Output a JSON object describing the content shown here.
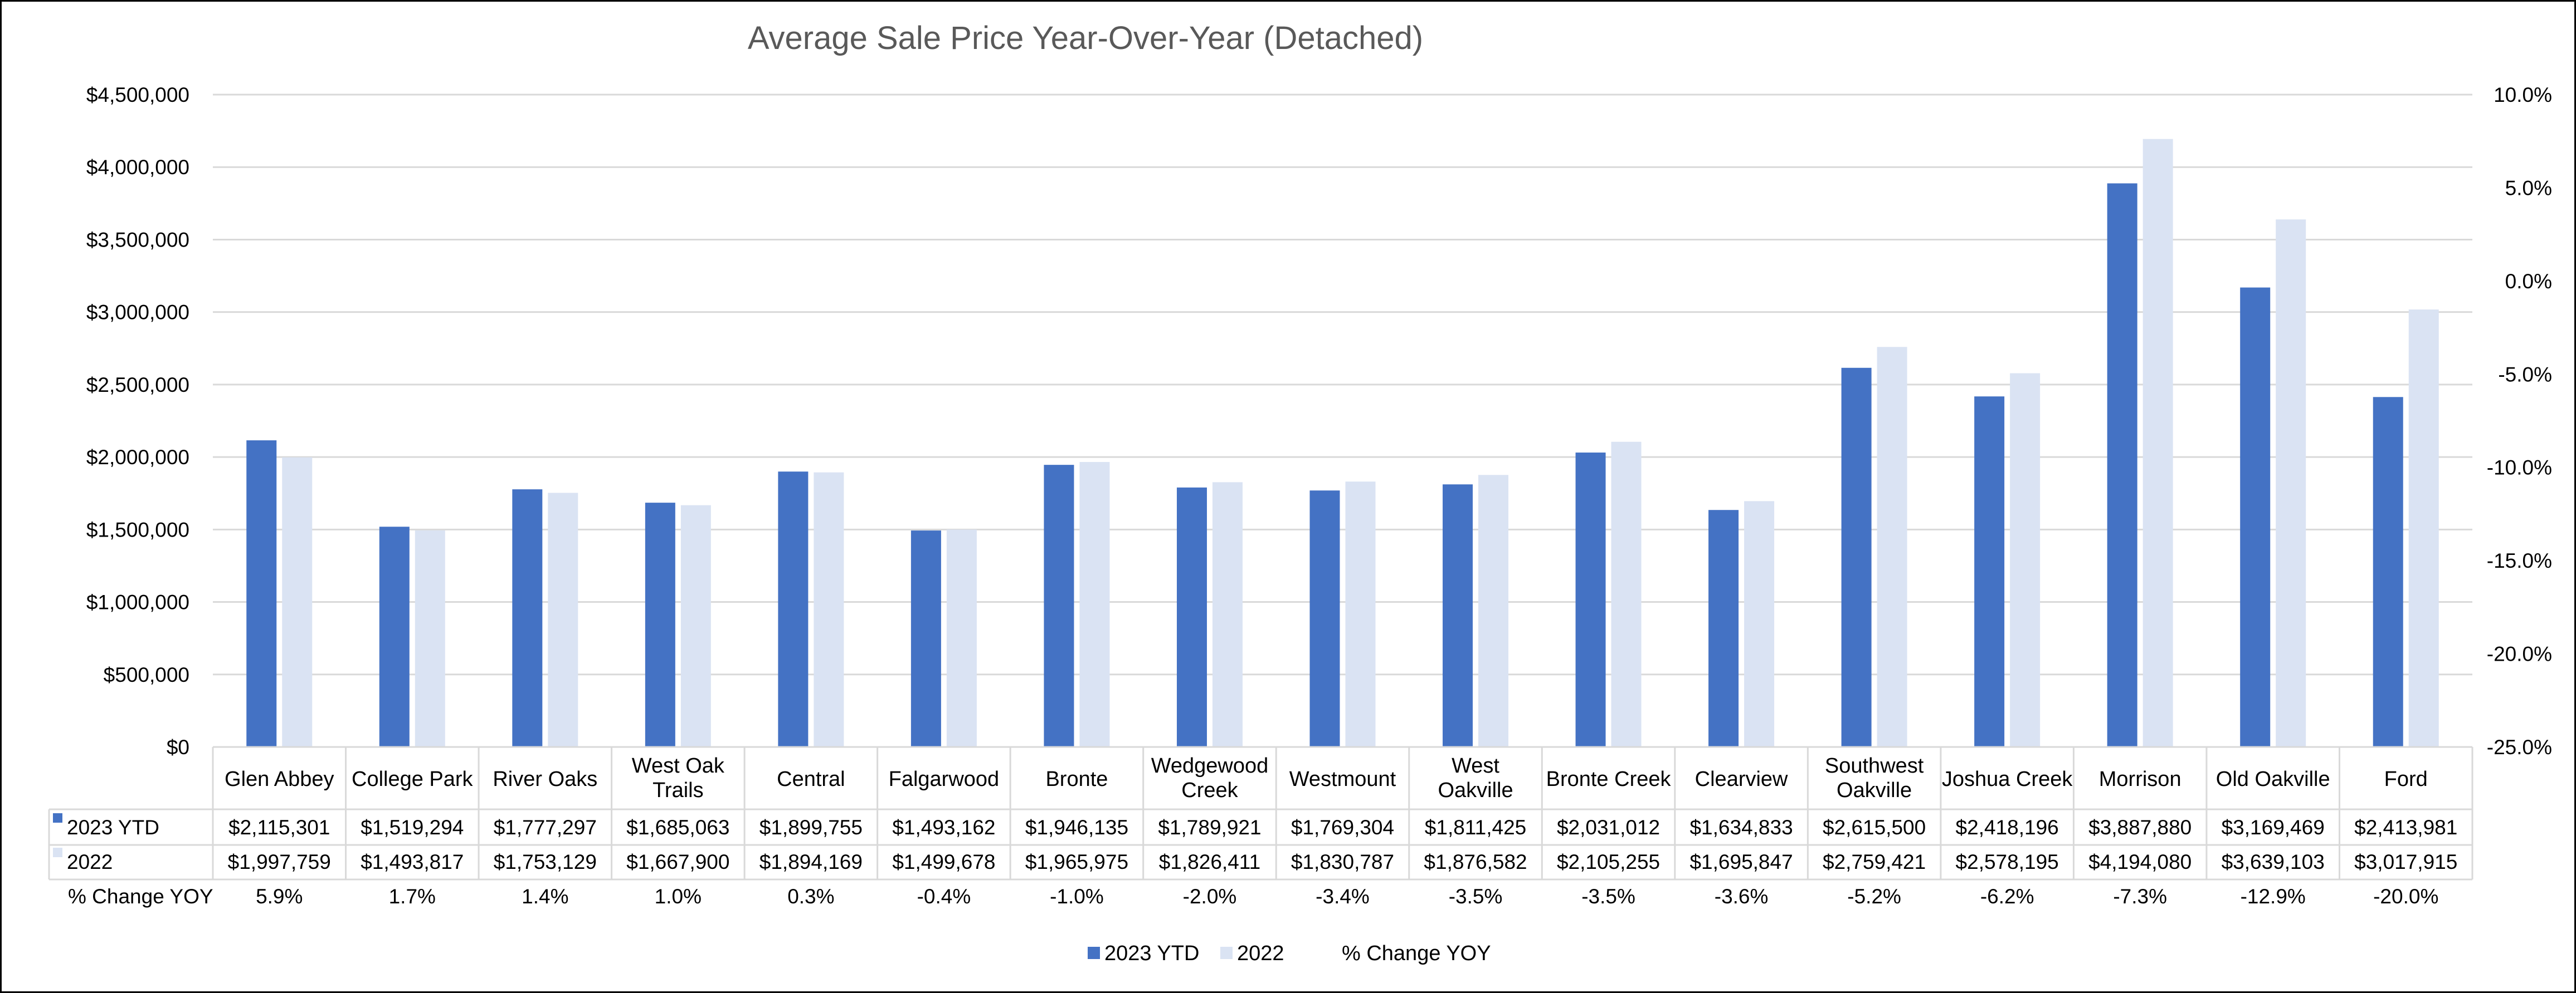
{
  "chart_data": {
    "type": "bar",
    "title": "Average Sale Price Year-Over-Year (Detached)",
    "categories": [
      [
        "Glen Abbey"
      ],
      [
        "College Park"
      ],
      [
        "River Oaks"
      ],
      [
        "West Oak",
        "Trails"
      ],
      [
        "Central"
      ],
      [
        "Falgarwood"
      ],
      [
        "Bronte"
      ],
      [
        "Wedgewood",
        "Creek"
      ],
      [
        "Westmount"
      ],
      [
        "West",
        "Oakville"
      ],
      [
        "Bronte Creek"
      ],
      [
        "Clearview"
      ],
      [
        "Southwest",
        "Oakville"
      ],
      [
        "Joshua Creek"
      ],
      [
        "Morrison"
      ],
      [
        "Old Oakville"
      ],
      [
        "Ford"
      ]
    ],
    "series": [
      {
        "name": "2023 YTD",
        "color": "#4472C4",
        "values": [
          2115301,
          1519294,
          1777297,
          1685063,
          1899755,
          1493162,
          1946135,
          1789921,
          1769304,
          1811425,
          2031012,
          1634833,
          2615500,
          2418196,
          3887880,
          3169469,
          2413981
        ],
        "labels": [
          "$2,115,301",
          "$1,519,294",
          "$1,777,297",
          "$1,685,063",
          "$1,899,755",
          "$1,493,162",
          "$1,946,135",
          "$1,789,921",
          "$1,769,304",
          "$1,811,425",
          "$2,031,012",
          "$1,634,833",
          "$2,615,500",
          "$2,418,196",
          "$3,887,880",
          "$3,169,469",
          "$2,413,981"
        ]
      },
      {
        "name": "2022",
        "color": "#DAE3F3",
        "values": [
          1997759,
          1493817,
          1753129,
          1667900,
          1894169,
          1499678,
          1965975,
          1826411,
          1830787,
          1876582,
          2105255,
          1695847,
          2759421,
          2578195,
          4194080,
          3639103,
          3017915
        ],
        "labels": [
          "$1,997,759",
          "$1,493,817",
          "$1,753,129",
          "$1,667,900",
          "$1,894,169",
          "$1,499,678",
          "$1,965,975",
          "$1,826,411",
          "$1,830,787",
          "$1,876,582",
          "$2,105,255",
          "$1,695,847",
          "$2,759,421",
          "$2,578,195",
          "$4,194,080",
          "$3,639,103",
          "$3,017,915"
        ]
      },
      {
        "name": "% Change YOY",
        "axis": "secondary",
        "values": [
          5.9,
          1.7,
          1.4,
          1.0,
          0.3,
          -0.4,
          -1.0,
          -2.0,
          -3.4,
          -3.5,
          -3.5,
          -3.6,
          -5.2,
          -6.2,
          -7.3,
          -12.9,
          -20.0
        ],
        "labels": [
          "5.9%",
          "1.7%",
          "1.4%",
          "1.0%",
          "0.3%",
          "-0.4%",
          "-1.0%",
          "-2.0%",
          "-3.4%",
          "-3.5%",
          "-3.5%",
          "-3.6%",
          "-5.2%",
          "-6.2%",
          "-7.3%",
          "-12.9%",
          "-20.0%"
        ]
      }
    ],
    "y_axis": {
      "min": 0,
      "max": 4500000,
      "ticks": [
        "$0",
        "$500,000",
        "$1,000,000",
        "$1,500,000",
        "$2,000,000",
        "$2,500,000",
        "$3,000,000",
        "$3,500,000",
        "$4,000,000",
        "$4,500,000"
      ]
    },
    "y2_axis": {
      "min": -25,
      "max": 10,
      "ticks": [
        "-25.0%",
        "-20.0%",
        "-15.0%",
        "-10.0%",
        "-5.0%",
        "0.0%",
        "5.0%",
        "10.0%"
      ]
    },
    "grid": true,
    "data_table": true,
    "legend_position": "bottom",
    "legend": [
      {
        "label": "2023 YTD",
        "color": "#4472C4"
      },
      {
        "label": "2022",
        "color": "#DAE3F3"
      },
      {
        "label": "% Change YOY",
        "color": ""
      }
    ]
  }
}
